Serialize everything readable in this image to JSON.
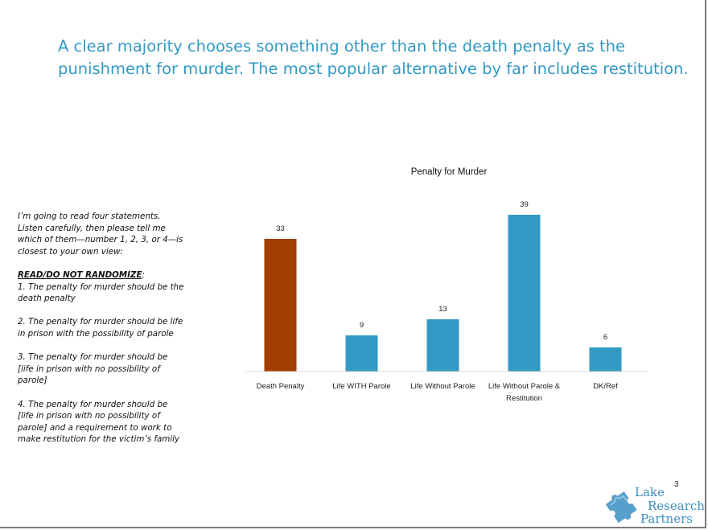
{
  "headline": {
    "line1": "A clear majority chooses something other than the death penalty as the",
    "line2": "punishment for murder.  The most popular alternative by far includes restitution."
  },
  "question": {
    "intro": [
      "I’m going to read four statements.",
      "Listen carefully, then please tell me",
      "which of them—number 1, 2, 3, or 4—is",
      "closest to your own view:"
    ],
    "instruction": "READ/DO NOT RANDOMIZE",
    "instruction_suffix": ":",
    "options": [
      [
        "1. The penalty for murder should be the",
        "death penalty"
      ],
      [
        "2. The penalty for murder should be life",
        "in prison with the possibility of parole"
      ],
      [
        "3. The penalty for murder should be",
        "[life in prison with no possibility of",
        "parole]"
      ],
      [
        "4. The penalty for murder should be",
        "[life in prison with no possibility of",
        "parole] and a requirement to work to",
        "make restitution for the victim’s family"
      ]
    ]
  },
  "chart_data": {
    "type": "bar",
    "title": "Penalty for Murder",
    "categories": [
      "Death Penalty",
      "Life WITH Parole",
      "Life Without Parole",
      "Life Without Parole & Restitution",
      "DK/Ref"
    ],
    "category_lines": [
      [
        "Death Penalty"
      ],
      [
        "Life WITH Parole"
      ],
      [
        "Life Without Parole"
      ],
      [
        "Life Without Parole &",
        "Restitution"
      ],
      [
        "DK/Ref"
      ]
    ],
    "values": [
      33,
      9,
      13,
      39,
      6
    ],
    "bar_colors": [
      "#a33d00",
      "#3399c4",
      "#3399c4",
      "#3399c4",
      "#3399c4"
    ],
    "ylim": [
      0,
      40
    ],
    "grid": false,
    "data_labels": true
  },
  "footer": {
    "page_number": "3",
    "logo": {
      "line1": "Lake",
      "line2": "Research",
      "line3": "Partners",
      "icon": "puzzle-piece-icon",
      "color": "#3a8fc2"
    }
  }
}
